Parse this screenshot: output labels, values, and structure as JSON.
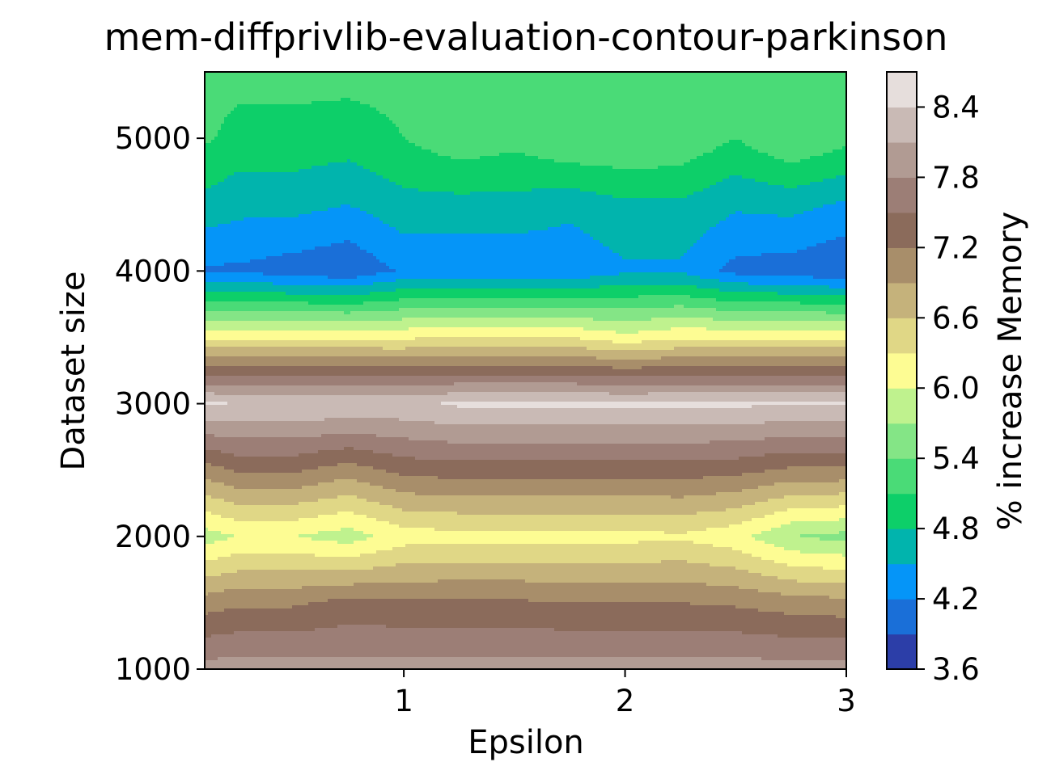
{
  "chart_data": {
    "type": "contour",
    "title": "mem-diffprivlib-evaluation-contour-parkinson",
    "xlabel": "Epsilon",
    "ylabel": "Dataset size",
    "colorbar_label": "% increase Memory",
    "xlim": [
      0.1,
      3
    ],
    "ylim": [
      1000,
      5500
    ],
    "x_ticks": [
      1,
      2,
      3
    ],
    "x_tick_labels": [
      "1",
      "2",
      "3"
    ],
    "y_ticks": [
      1000,
      2000,
      3000,
      4000,
      5000
    ],
    "y_tick_labels": [
      "1000",
      "2000",
      "3000",
      "4000",
      "5000"
    ],
    "x": [
      0.1,
      0.25,
      0.5,
      0.75,
      1.0,
      1.25,
      1.5,
      1.75,
      2.0,
      2.25,
      2.5,
      2.75,
      3.0
    ],
    "y": [
      1000,
      1500,
      2000,
      2500,
      3000,
      3500,
      4000,
      4500,
      5000,
      5500
    ],
    "z": [
      [
        7.92,
        7.95,
        7.94,
        7.92,
        7.93,
        7.93,
        7.93,
        7.92,
        7.93,
        7.93,
        7.94,
        7.92,
        7.93
      ],
      [
        7.05,
        7.15,
        7.15,
        7.3,
        7.25,
        7.25,
        7.25,
        7.2,
        7.2,
        7.2,
        7.15,
        7.05,
        7.0
      ],
      [
        5.85,
        6.0,
        6.0,
        5.85,
        6.15,
        6.2,
        6.2,
        6.2,
        6.2,
        6.25,
        6.1,
        5.7,
        5.6
      ],
      [
        7.05,
        7.25,
        7.25,
        7.05,
        7.3,
        7.35,
        7.35,
        7.35,
        7.35,
        7.35,
        7.3,
        7.15,
        7.15
      ],
      [
        8.45,
        8.4,
        8.4,
        8.4,
        8.35,
        8.45,
        8.45,
        8.45,
        8.45,
        8.45,
        8.45,
        8.45,
        8.45
      ],
      [
        6.25,
        6.25,
        6.25,
        6.25,
        6.25,
        6.3,
        6.3,
        6.3,
        6.1,
        6.25,
        6.25,
        6.25,
        6.25
      ],
      [
        4.15,
        4.15,
        4.05,
        3.95,
        4.25,
        4.25,
        4.25,
        4.25,
        4.45,
        4.45,
        4.1,
        4.05,
        3.9
      ],
      [
        4.7,
        4.6,
        4.6,
        4.5,
        4.7,
        4.7,
        4.7,
        4.6,
        4.75,
        4.75,
        4.55,
        4.6,
        4.45
      ],
      [
        5.15,
        5.0,
        5.0,
        4.95,
        5.1,
        5.3,
        5.2,
        5.4,
        5.4,
        5.35,
        5.1,
        5.4,
        5.2
      ],
      [
        5.2,
        5.2,
        5.2,
        5.2,
        5.2,
        5.2,
        5.2,
        5.2,
        5.2,
        5.2,
        5.2,
        5.2,
        5.2
      ]
    ],
    "levels": [
      3.6,
      3.9,
      4.2,
      4.5,
      4.8,
      5.1,
      5.4,
      5.7,
      6.0,
      6.3,
      6.6,
      6.9,
      7.2,
      7.5,
      7.8,
      8.1,
      8.4,
      8.7
    ],
    "colormap": "terrain",
    "level_colors": [
      "#2c3ea8",
      "#1a6fd8",
      "#0595f8",
      "#01b4ad",
      "#0dcf69",
      "#4adb77",
      "#84e586",
      "#bff28e",
      "#fdfc93",
      "#e0d786",
      "#c5b27b",
      "#a88e6a",
      "#8b6b5b",
      "#9c7e76",
      "#b19b93",
      "#c9bab5",
      "#e6dedc"
    ],
    "colorbar_ticks": [
      3.6,
      4.2,
      4.8,
      5.4,
      6.0,
      6.6,
      7.2,
      7.8,
      8.4
    ],
    "colorbar_tick_labels": [
      "3.6",
      "4.2",
      "4.8",
      "5.4",
      "6.0",
      "6.6",
      "7.2",
      "7.8",
      "8.4"
    ]
  }
}
